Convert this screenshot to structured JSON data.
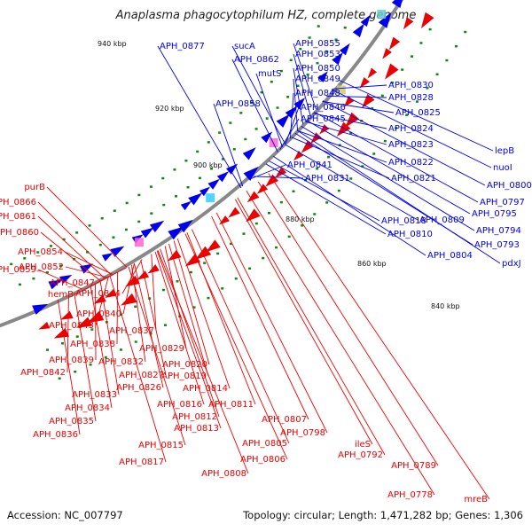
{
  "title": "Anaplasma phagocytophilum HZ, complete genome",
  "footer": {
    "accession": "Accession: NC_007797",
    "summary": "Topology: circular; Length: 1,471,282 bp; Genes: 1,306"
  },
  "colors": {
    "forward": "#0000ee",
    "reverse": "#ee0000",
    "backbone": "#888888",
    "tick_dot": "#118811"
  },
  "ticks": [
    "940 kbp",
    "920 kbp",
    "900 kbp",
    "880 kbp",
    "860 kbp",
    "840 kbp"
  ],
  "forward_genes": [
    "APH_0877",
    "sucA",
    "APH_0862",
    "mutS",
    "APH_0858",
    "APH_0855",
    "APH_0853",
    "APH_0850",
    "APH_0849",
    "APH_0848",
    "APH_0846",
    "APH_0845",
    "APH_0841",
    "APH_0831",
    "APH_0830",
    "APH_0828",
    "APH_0825",
    "APH_0824",
    "APH_0823",
    "APH_0822",
    "APH_0821",
    "APH_0818",
    "APH_0810",
    "APH_0809",
    "APH_0804",
    "lepB",
    "nuoI",
    "APH_0800",
    "APH_0797",
    "APH_0795",
    "APH_0794",
    "APH_0793",
    "pdxJ"
  ],
  "reverse_genes": [
    "purB",
    "APH_0866",
    "APH_0861",
    "APH_0860",
    "APH_0854",
    "APH_0859",
    "APH_0852",
    "APH_0847",
    "hemB",
    "APH_0844",
    "APH_0840",
    "APH_0843",
    "APH_0837",
    "APH_0838",
    "APH_0829",
    "APH_0839",
    "APH_0832",
    "APH_0842",
    "APH_0820",
    "APH_0827",
    "APH_0819",
    "APH_0826",
    "APH_0814",
    "APH_0833",
    "APH_0816",
    "APH_0811",
    "APH_0834",
    "APH_0812",
    "APH_0835",
    "APH_0813",
    "APH_0807",
    "APH_0836",
    "APH_0798",
    "ileS",
    "APH_0805",
    "APH_0815",
    "APH_0792",
    "APH_0806",
    "APH_0817",
    "APH_0789",
    "APH_0808",
    "APH_0778",
    "mreB"
  ]
}
